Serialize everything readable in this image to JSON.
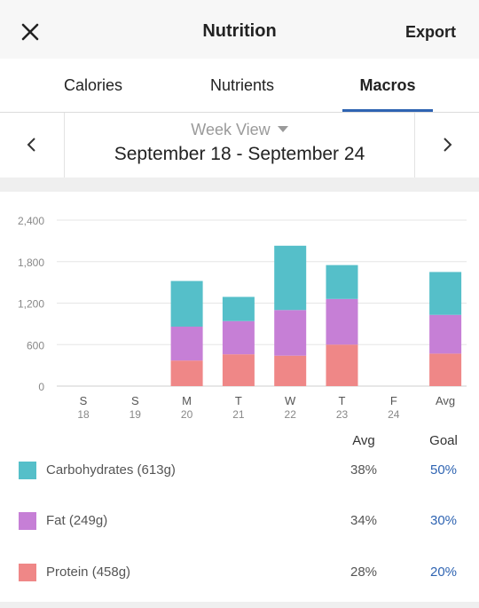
{
  "header": {
    "title": "Nutrition",
    "export_label": "Export",
    "close_icon": "close-icon"
  },
  "tabs": [
    {
      "label": "Calories",
      "active": false
    },
    {
      "label": "Nutrients",
      "active": false
    },
    {
      "label": "Macros",
      "active": true
    }
  ],
  "week": {
    "view_label": "Week View",
    "range": "September 18 - September 24"
  },
  "colors": {
    "carbs": "#55bfc9",
    "fat": "#c67fd6",
    "protein": "#ef8787",
    "accent": "#2f64b2"
  },
  "chart_data": {
    "type": "bar",
    "stacked": true,
    "categories": [
      {
        "day": "S",
        "date": "18"
      },
      {
        "day": "S",
        "date": "19"
      },
      {
        "day": "M",
        "date": "20"
      },
      {
        "day": "T",
        "date": "21"
      },
      {
        "day": "W",
        "date": "22"
      },
      {
        "day": "T",
        "date": "23"
      },
      {
        "day": "F",
        "date": "24"
      },
      {
        "day": "Avg",
        "date": ""
      }
    ],
    "series": [
      {
        "key": "protein",
        "values": [
          0,
          0,
          370,
          460,
          440,
          600,
          0,
          470
        ]
      },
      {
        "key": "fat",
        "values": [
          0,
          0,
          490,
          480,
          660,
          660,
          0,
          560
        ]
      },
      {
        "key": "carbs",
        "values": [
          0,
          0,
          660,
          350,
          930,
          490,
          0,
          620
        ]
      }
    ],
    "y_ticks": [
      "2,400",
      "1,800",
      "1,200",
      "600",
      "0"
    ],
    "ylim": [
      0,
      2400
    ],
    "grid": true
  },
  "table": {
    "avg_header": "Avg",
    "goal_header": "Goal",
    "rows": [
      {
        "key": "carbs",
        "label": "Carbohydrates (613g)",
        "avg": "38%",
        "goal": "50%"
      },
      {
        "key": "fat",
        "label": "Fat (249g)",
        "avg": "34%",
        "goal": "30%"
      },
      {
        "key": "protein",
        "label": "Protein (458g)",
        "avg": "28%",
        "goal": "20%"
      }
    ]
  }
}
